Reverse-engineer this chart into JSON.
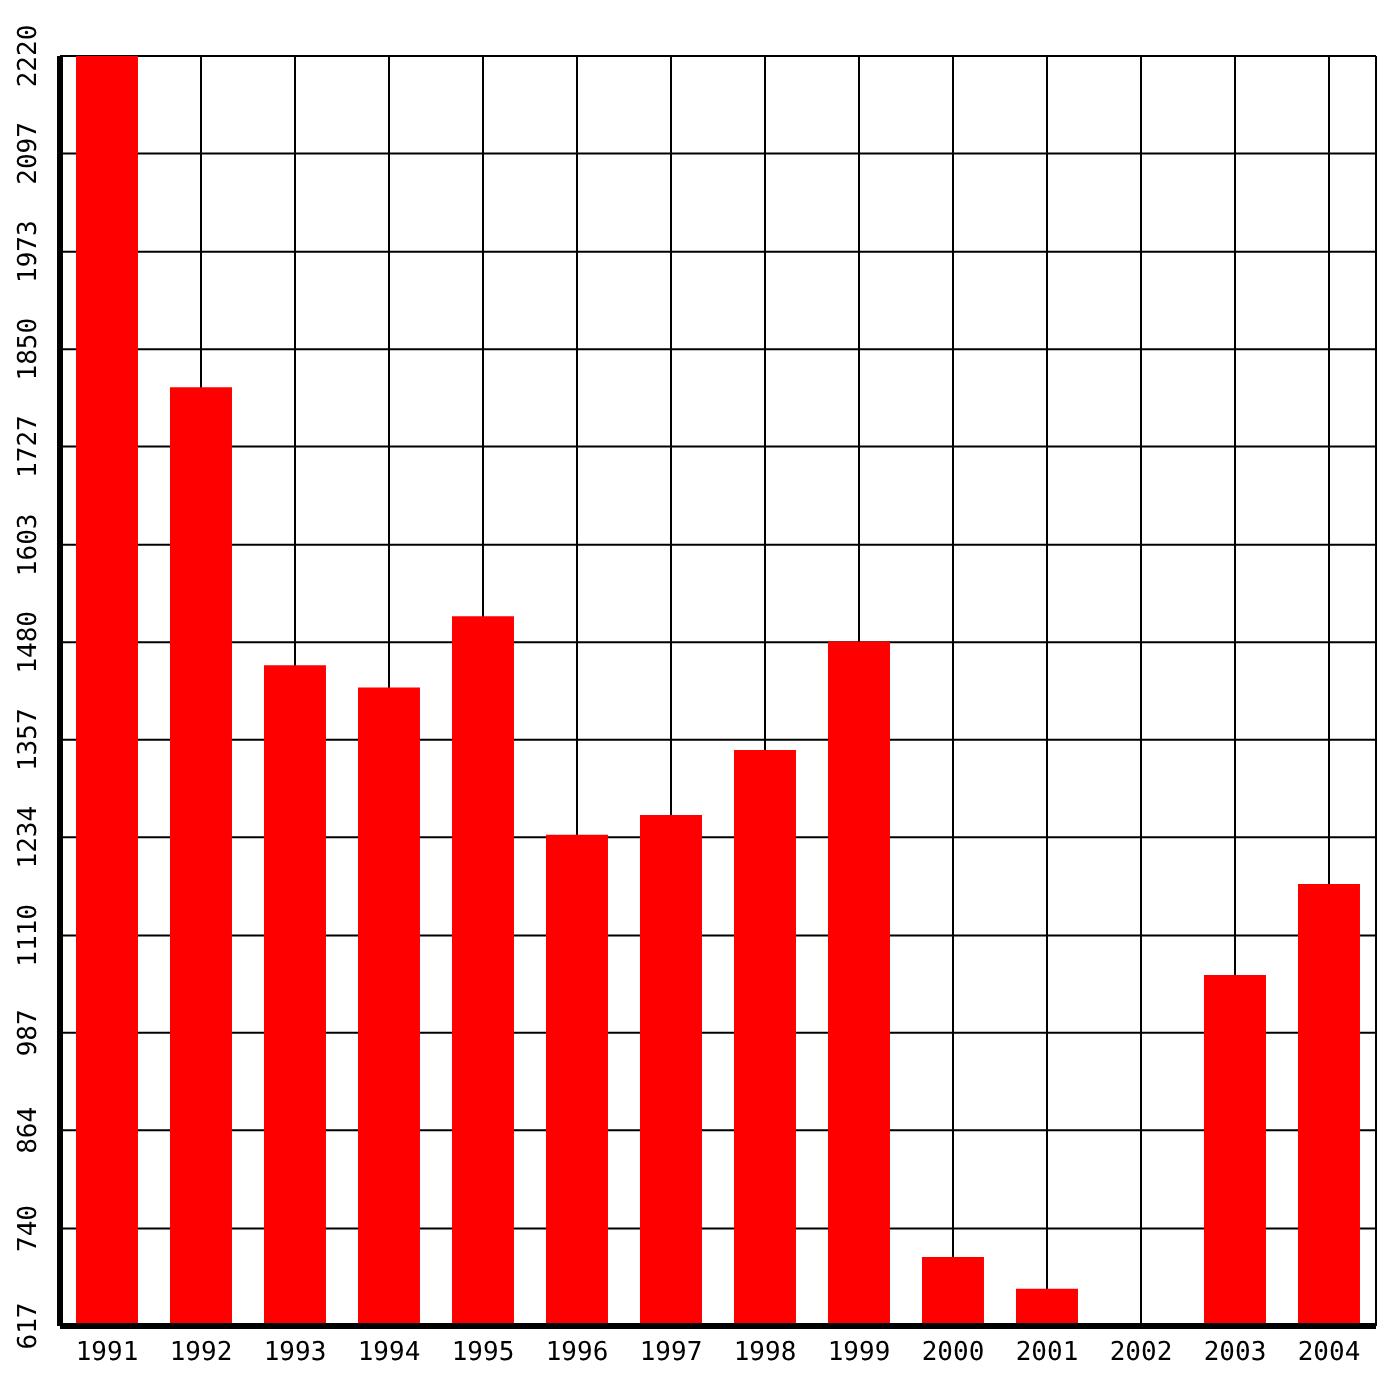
{
  "chart_data": {
    "type": "bar",
    "categories": [
      "1991",
      "1992",
      "1993",
      "1994",
      "1995",
      "1996",
      "1997",
      "1998",
      "1999",
      "2000",
      "2001",
      "2002",
      "2003",
      "2004"
    ],
    "values": [
      2220,
      1802,
      1451,
      1423,
      1513,
      1237,
      1262,
      1344,
      1481,
      704,
      664,
      null,
      1060,
      1175
    ],
    "color": "#ff0000",
    "ylim": [
      617,
      2220
    ],
    "yticks": [
      617,
      740,
      864,
      987,
      1110,
      1234,
      1357,
      1480,
      1603,
      1727,
      1850,
      1973,
      2097,
      2220
    ],
    "grid": true
  }
}
